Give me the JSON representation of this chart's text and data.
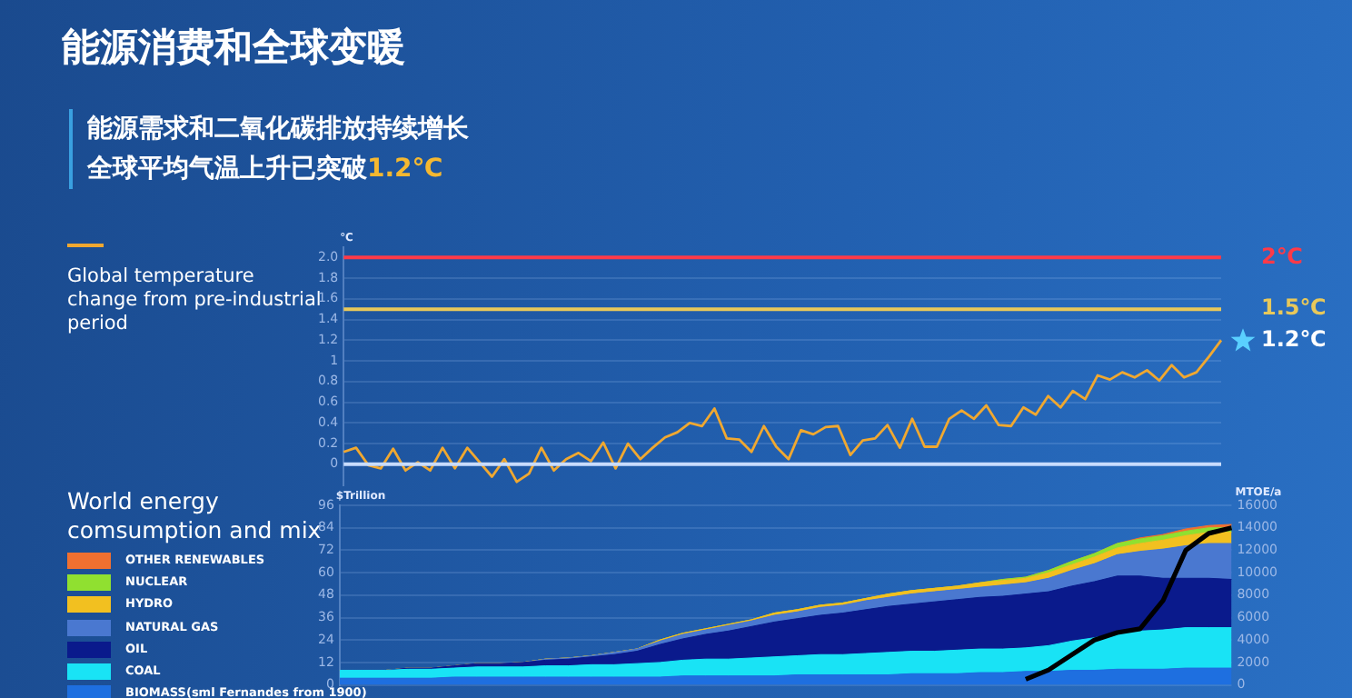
{
  "chart_data": [
    {
      "type": "line",
      "title": "能源消费和全球变暖",
      "subtitle": "能源需求和二氧化碳排放持续增长全球平均气温上升已突破1.2℃",
      "ylabel": "℃",
      "categories": [
        null,
        null,
        null,
        null,
        null,
        null,
        null,
        null,
        null,
        null,
        null,
        null,
        null,
        null,
        null,
        null,
        null,
        null,
        null,
        null,
        null,
        null,
        null,
        null,
        null,
        null,
        null,
        null,
        null,
        null,
        null,
        null,
        null,
        null,
        null,
        null,
        null,
        null,
        null,
        null,
        null,
        null,
        null,
        null,
        null,
        null,
        null,
        null,
        null,
        null,
        null,
        null,
        null,
        null,
        null,
        null,
        null,
        null,
        null,
        null,
        null,
        null,
        null,
        null,
        null,
        null,
        null,
        null,
        null,
        null,
        null,
        null
      ],
      "series": [
        {
          "name": "Global temperature change from pre-industrial period",
          "color": "#f0a830",
          "values": [
            0.12,
            0.16,
            -0.01,
            -0.04,
            0.15,
            -0.06,
            0.02,
            -0.06,
            0.16,
            -0.04,
            0.16,
            0.02,
            -0.12,
            0.05,
            -0.17,
            -0.09,
            0.16,
            -0.06,
            0.05,
            0.11,
            0.03,
            0.21,
            -0.04,
            0.2,
            0.05,
            0.16,
            0.26,
            0.31,
            0.4,
            0.37,
            0.54,
            0.25,
            0.24,
            0.12,
            0.37,
            0.17,
            0.05,
            0.33,
            0.29,
            0.36,
            0.37,
            0.09,
            0.23,
            0.25,
            0.38,
            0.16,
            0.44,
            0.17,
            0.17,
            0.44,
            0.52,
            0.44,
            0.57,
            0.38,
            0.37,
            0.55,
            0.48,
            0.66,
            0.55,
            0.71,
            0.63,
            0.86,
            0.82,
            0.89,
            0.84,
            0.91,
            0.81,
            0.96,
            0.84,
            0.89,
            1.04,
            1.2
          ]
        }
      ],
      "ylim": [
        -0.2,
        2.1
      ],
      "yticks": [
        0,
        0.2,
        0.4,
        0.6,
        0.8,
        1,
        1.2,
        1.4,
        1.6,
        1.8,
        {
          "value": 2,
          "label": "2.0"
        }
      ],
      "grid": "y",
      "legend": "left",
      "ref_lines": [
        {
          "axis": "y",
          "value": 2,
          "label": "2℃",
          "color": "#ff3a48"
        },
        {
          "axis": "y",
          "value": 1.5,
          "label": "1.5℃",
          "color": "#e8c85a"
        },
        {
          "axis": "y",
          "value": 0,
          "label": null,
          "color": "#c8dcff"
        }
      ],
      "annotations": [
        "1.2℃"
      ]
    },
    {
      "type": "area",
      "stacked": true,
      "legend_title": "World energy comsumption and mix",
      "ylabel": "$Trillion",
      "y2label": "MTOE/a",
      "legend": "left",
      "grid": "y",
      "categories": [
        null,
        null,
        null,
        null,
        null,
        null,
        null,
        null,
        null,
        null,
        null,
        null,
        null,
        null,
        null,
        null,
        null,
        null,
        null,
        null,
        null,
        null,
        null,
        null,
        null,
        null,
        null,
        null,
        null,
        null,
        null,
        null,
        null,
        null,
        null,
        null,
        null,
        null,
        null,
        null
      ],
      "ylim": [
        0,
        96
      ],
      "yticks": [
        0,
        12,
        24,
        36,
        48,
        60,
        72,
        84,
        96
      ],
      "y2lim": [
        0,
        16000
      ],
      "y2ticks": [
        0,
        2000,
        4000,
        6000,
        8000,
        10000,
        12000,
        14000,
        16000
      ],
      "series": [
        {
          "name": "BIOMASS(sml Fernandes from 1900)",
          "color": "#1e6fe0",
          "axis": "y2",
          "values": [
            600,
            600,
            600,
            600,
            600,
            700,
            700,
            700,
            700,
            700,
            700,
            700,
            700,
            700,
            700,
            800,
            800,
            800,
            800,
            800,
            900,
            900,
            900,
            900,
            900,
            1000,
            1000,
            1000,
            1100,
            1100,
            1200,
            1200,
            1300,
            1300,
            1400,
            1400,
            1400,
            1500,
            1500,
            1500
          ]
        },
        {
          "name": "COAL",
          "color": "#19e3f5",
          "axis": "y2",
          "values": [
            700,
            700,
            700,
            800,
            800,
            800,
            900,
            900,
            900,
            1000,
            1000,
            1100,
            1100,
            1200,
            1300,
            1400,
            1500,
            1500,
            1600,
            1700,
            1700,
            1800,
            1800,
            1900,
            2000,
            2000,
            2000,
            2100,
            2100,
            2100,
            2100,
            2300,
            2600,
            2900,
            3200,
            3400,
            3500,
            3600,
            3600,
            3600
          ]
        },
        {
          "name": "OIL",
          "color": "#0a1a8c",
          "axis": "y2",
          "values": [
            0,
            0,
            0,
            100,
            100,
            200,
            300,
            300,
            400,
            500,
            600,
            700,
            900,
            1100,
            1600,
            1900,
            2200,
            2500,
            2800,
            3100,
            3300,
            3500,
            3700,
            3900,
            4100,
            4200,
            4400,
            4500,
            4600,
            4700,
            4800,
            4800,
            4900,
            5000,
            5100,
            4900,
            4600,
            4400,
            4400,
            4300
          ]
        },
        {
          "name": "NATURAL  GAS",
          "color": "#4a78d0",
          "axis": "y2",
          "values": [
            0,
            0,
            0,
            0,
            0,
            0,
            0,
            0,
            0,
            100,
            100,
            100,
            200,
            200,
            300,
            400,
            400,
            500,
            500,
            600,
            600,
            700,
            700,
            800,
            800,
            900,
            900,
            900,
            900,
            1000,
            1000,
            1200,
            1400,
            1600,
            1900,
            2200,
            2600,
            2900,
            3100,
            3200
          ]
        },
        {
          "name": "HYDRO",
          "color": "#f2c020",
          "axis": "y2",
          "values": [
            0,
            0,
            0,
            0,
            0,
            0,
            0,
            0,
            0,
            0,
            0,
            0,
            0,
            0,
            100,
            100,
            100,
            100,
            100,
            200,
            200,
            200,
            200,
            200,
            300,
            300,
            300,
            300,
            400,
            400,
            400,
            500,
            500,
            600,
            600,
            700,
            800,
            900,
            1000,
            1000
          ]
        },
        {
          "name": "NUCLEAR",
          "color": "#90e030",
          "axis": "y2",
          "values": [
            0,
            0,
            0,
            0,
            0,
            0,
            0,
            0,
            0,
            0,
            0,
            0,
            0,
            0,
            0,
            0,
            0,
            0,
            0,
            0,
            0,
            0,
            0,
            0,
            0,
            0,
            0,
            0,
            0,
            100,
            100,
            200,
            300,
            300,
            400,
            400,
            400,
            400,
            400,
            400
          ]
        },
        {
          "name": "OTHER RENEWABLES",
          "color": "#f07030",
          "axis": "y2",
          "values": [
            0,
            0,
            0,
            0,
            0,
            0,
            0,
            0,
            0,
            0,
            0,
            0,
            0,
            0,
            0,
            0,
            0,
            0,
            0,
            0,
            0,
            0,
            0,
            0,
            0,
            0,
            0,
            0,
            0,
            0,
            0,
            0,
            0,
            0,
            0,
            100,
            100,
            200,
            200,
            300
          ]
        },
        {
          "type": "line",
          "color": "#000000",
          "axis": "y",
          "values": [
            null,
            null,
            null,
            null,
            null,
            null,
            null,
            null,
            null,
            null,
            null,
            null,
            null,
            null,
            null,
            null,
            null,
            null,
            null,
            null,
            null,
            null,
            null,
            null,
            null,
            null,
            null,
            null,
            null,
            null,
            3,
            8,
            16,
            24,
            28,
            30,
            45,
            72,
            81,
            84
          ]
        }
      ]
    }
  ]
}
